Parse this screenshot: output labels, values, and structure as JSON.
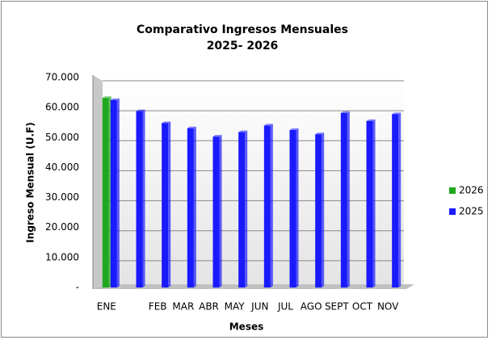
{
  "chart_data": {
    "type": "bar",
    "title": "Comparativo Ingresos Mensuales",
    "subtitle": "2025- 2026",
    "x_label": "Meses",
    "y_label": "Ingreso Mensual (U.F)",
    "categories": [
      "ENE",
      null,
      "FEB",
      "MAR",
      "ABR",
      "MAY",
      "JUN",
      "JUL",
      "AGO",
      "SEPT",
      "OCT",
      "NOV"
    ],
    "series": [
      {
        "name": "2026",
        "color": "#1fa81f",
        "values": [
          63200,
          null,
          null,
          null,
          null,
          null,
          null,
          null,
          null,
          null,
          null,
          null
        ]
      },
      {
        "name": "2025",
        "color": "#1a1aff",
        "values": [
          62500,
          58800,
          54800,
          53100,
          50300,
          51800,
          54000,
          52500,
          51100,
          58200,
          55500,
          57800
        ]
      }
    ],
    "ylim": [
      0,
      70000
    ],
    "yticks": [
      {
        "value": 0,
        "label": "-"
      },
      {
        "value": 10000,
        "label": "10.000"
      },
      {
        "value": 20000,
        "label": "20.000"
      },
      {
        "value": 30000,
        "label": "30.000"
      },
      {
        "value": 40000,
        "label": "40.000"
      },
      {
        "value": 50000,
        "label": "50.000"
      },
      {
        "value": 60000,
        "label": "60.000"
      },
      {
        "value": 70000,
        "label": "70.000"
      }
    ],
    "grid": true,
    "legend": "right"
  }
}
